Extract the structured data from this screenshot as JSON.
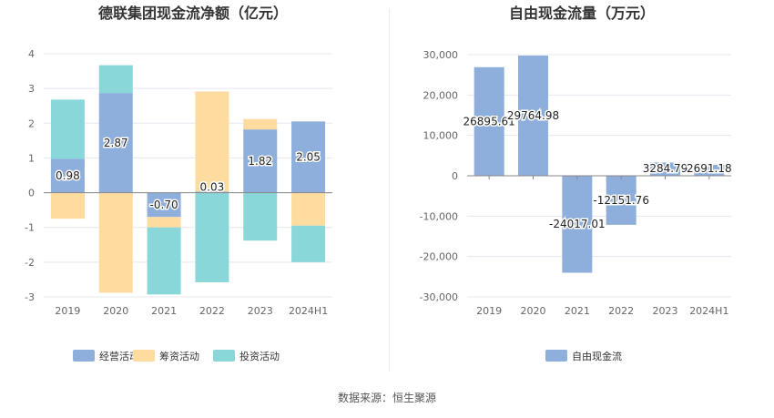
{
  "chart_data": [
    {
      "type": "bar",
      "stacked": true,
      "title": "德联集团现金流净额（亿元）",
      "categories": [
        "2019",
        "2020",
        "2021",
        "2022",
        "2023",
        "2024H1"
      ],
      "ylim": [
        -3,
        4
      ],
      "yticks": [
        4,
        3,
        2,
        1,
        0,
        -1,
        -2,
        -3
      ],
      "series": [
        {
          "name": "经营活动",
          "color": "#8eaedb",
          "values": [
            0.98,
            2.87,
            -0.7,
            0.03,
            1.82,
            2.05
          ]
        },
        {
          "name": "筹资活动",
          "color": "#fedc9f",
          "values": [
            -0.75,
            -2.88,
            -0.3,
            2.88,
            0.3,
            -0.95
          ]
        },
        {
          "name": "投资活动",
          "color": "#8ad7d9",
          "values": [
            1.7,
            0.8,
            -1.93,
            -2.58,
            -1.38,
            -1.05
          ]
        }
      ],
      "data_labels": [
        "0.98",
        "2.87",
        "-0.70",
        "0.03",
        "1.82",
        "2.05"
      ],
      "legend": [
        "经营活动",
        "筹资活动",
        "投资活动"
      ]
    },
    {
      "type": "bar",
      "title": "自由现金流量（万元）",
      "categories": [
        "2019",
        "2020",
        "2021",
        "2022",
        "2023",
        "2024H1"
      ],
      "ylim": [
        -30000,
        30000
      ],
      "yticks": [
        "30,000",
        "20,000",
        "10,000",
        "0",
        "-10,000",
        "-20,000",
        "-30,000"
      ],
      "series": [
        {
          "name": "自由现金流",
          "color": "#8eaedb",
          "values": [
            26895.61,
            29764.98,
            -24017.01,
            -12151.76,
            3284.79,
            2691.18
          ]
        }
      ],
      "data_labels": [
        "26895.61",
        "29764.98",
        "-24017.01",
        "-12151.76",
        "3284.79",
        "2691.18"
      ],
      "legend": [
        "自由现金流"
      ]
    }
  ],
  "source": "数据来源：恒生聚源"
}
